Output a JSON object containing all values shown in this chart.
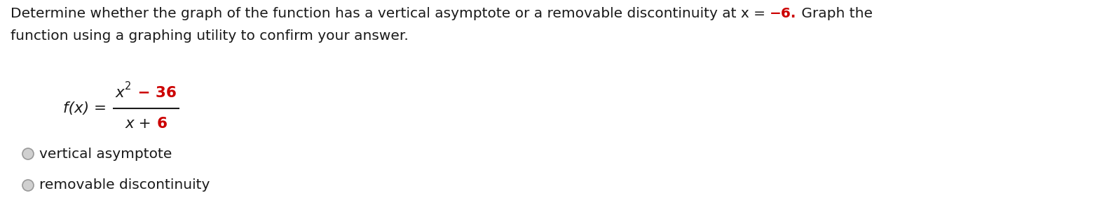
{
  "bg_color": "#ffffff",
  "text_color": "#1a1a1a",
  "red_color": "#cc0000",
  "line1_part1": "Determine whether the graph of the function has a vertical asymptote or a removable discontinuity at x = ",
  "line1_part2": "−6.",
  "line1_part3": " Graph the",
  "line2": "function using a graphing utility to confirm your answer.",
  "radio1": "vertical asymptote",
  "radio2": "removable discontinuity",
  "font_size_body": 14.5,
  "font_size_math": 15.5,
  "font_size_super": 10.5,
  "fig_width": 15.75,
  "fig_height": 3.16,
  "dpi": 100
}
